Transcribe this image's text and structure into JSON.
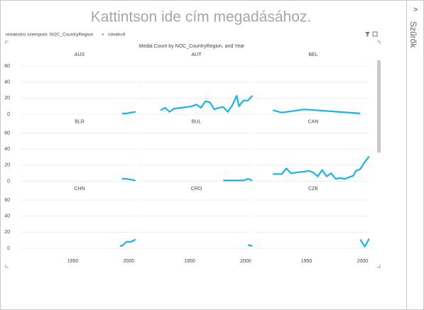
{
  "page": {
    "title": "Kattintson ide cím megadásához.",
    "sort_label": "rendezési szempont: NOC_CountryRegion",
    "sort_order": "növekvő",
    "filters_label": "Szűrők"
  },
  "chart_data": {
    "type": "line",
    "title": "Medal Count by NOC_CountryRegion, and Year",
    "xlim": [
      1904,
      2008
    ],
    "xticks": [
      1950,
      2000
    ],
    "ylim": [
      0,
      60
    ],
    "yticks": [
      0,
      20,
      40,
      60
    ],
    "grid": true,
    "columns": 3,
    "series": [
      {
        "name": "AUS",
        "color": "#1ab3e8",
        "x": [
          1994,
          1998,
          2002,
          2006
        ],
        "values": [
          1,
          1,
          2,
          3
        ]
      },
      {
        "name": "AUT",
        "color": "#1ab3e8",
        "x": [
          1924,
          1928,
          1932,
          1936,
          1948,
          1952,
          1956,
          1960,
          1964,
          1968,
          1972,
          1976,
          1980,
          1984,
          1988,
          1992,
          1994,
          1998,
          2002,
          2006
        ],
        "values": [
          5,
          8,
          3,
          7,
          9,
          10,
          12,
          8,
          16,
          15,
          6,
          8,
          9,
          3,
          11,
          23,
          10,
          17,
          17,
          23
        ]
      },
      {
        "name": "BEL",
        "color": "#1ab3e8",
        "x": [
          1920,
          1928,
          1948,
          1998
        ],
        "values": [
          5,
          2,
          6,
          1
        ]
      },
      {
        "name": "BLR",
        "color": "#1ab3e8",
        "x": [
          1994,
          1998,
          2002,
          2006
        ],
        "values": [
          3,
          3,
          2,
          1
        ]
      },
      {
        "name": "BUL",
        "color": "#1ab3e8",
        "x": [
          1980,
          1984,
          1988,
          1992,
          1998,
          2002,
          2006
        ],
        "values": [
          1,
          1,
          1,
          1,
          1,
          3,
          1
        ]
      },
      {
        "name": "CAN",
        "color": "#1ab3e8",
        "x": [
          1920,
          1924,
          1928,
          1932,
          1936,
          1948,
          1952,
          1956,
          1960,
          1964,
          1968,
          1972,
          1976,
          1980,
          1984,
          1988,
          1992,
          1994,
          1998,
          2002,
          2006
        ],
        "values": [
          9,
          9,
          9,
          16,
          10,
          12,
          13,
          11,
          6,
          14,
          6,
          10,
          3,
          4,
          3,
          5,
          7,
          13,
          15,
          24,
          31
        ]
      },
      {
        "name": "CHN",
        "color": "#1ab3e8",
        "x": [
          1992,
          1994,
          1998,
          2002,
          2006
        ],
        "values": [
          3,
          3,
          8,
          8,
          11
        ]
      },
      {
        "name": "CRO",
        "color": "#1ab3e8",
        "x": [
          2002,
          2006
        ],
        "values": [
          4,
          3
        ]
      },
      {
        "name": "CZE",
        "color": "#1ab3e8",
        "x": [
          1998,
          2002,
          2006
        ],
        "values": [
          11,
          2,
          12
        ]
      }
    ]
  }
}
